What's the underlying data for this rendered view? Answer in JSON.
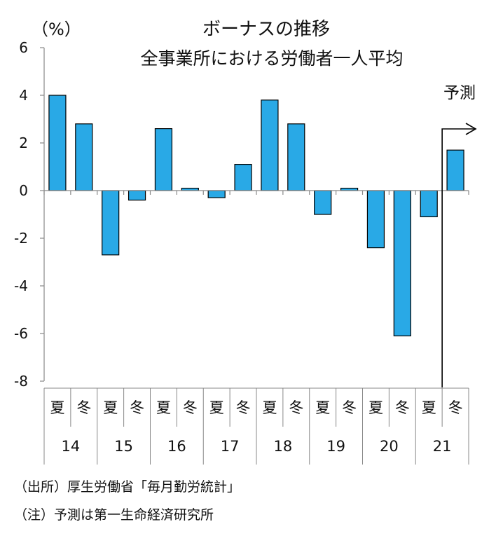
{
  "chart_data": {
    "type": "bar",
    "title": "ボーナスの推移",
    "subtitle": "全事業所における労働者一人平均",
    "ylabel": "（%）",
    "ylim": [
      -8,
      6
    ],
    "yticks": [
      "6",
      "4",
      "2",
      "0",
      "-2",
      "-4",
      "-6",
      "-8"
    ],
    "ytick_values": [
      6,
      4,
      2,
      0,
      -2,
      -4,
      -6,
      -8
    ],
    "categories": [
      "夏",
      "冬",
      "夏",
      "冬",
      "夏",
      "冬",
      "夏",
      "冬",
      "夏",
      "冬",
      "夏",
      "冬",
      "夏",
      "冬",
      "夏",
      "冬"
    ],
    "years": [
      "14",
      "15",
      "16",
      "17",
      "18",
      "19",
      "20",
      "21"
    ],
    "values": [
      4.0,
      2.8,
      -2.7,
      -0.4,
      2.6,
      0.1,
      -0.3,
      1.1,
      3.8,
      2.8,
      -1.0,
      0.1,
      -2.4,
      -6.1,
      -1.1,
      1.7
    ],
    "forecast_label": "予測",
    "forecast_start_index": 15,
    "bar_color": "#29A9E6",
    "bar_edge_color": "#000000"
  },
  "notes": {
    "source": "（出所）厚生労働省「毎月勤労統計」",
    "note": "（注）予測は第一生命経済研究所"
  }
}
